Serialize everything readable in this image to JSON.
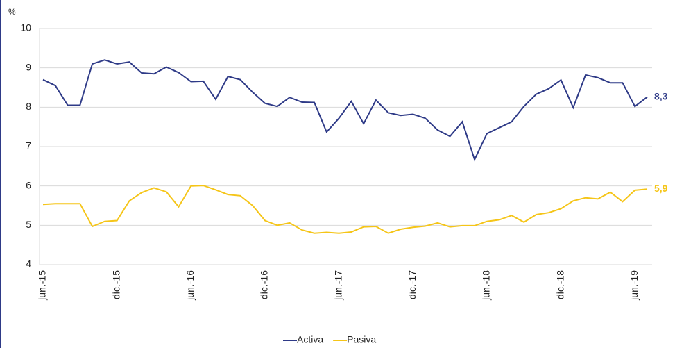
{
  "chart_data": {
    "type": "line",
    "y_label": "%",
    "categories": [
      "jun.-15",
      null,
      null,
      null,
      null,
      null,
      "dic.-15",
      null,
      null,
      null,
      null,
      null,
      "jun.-16",
      null,
      null,
      null,
      null,
      null,
      "dic.-16",
      null,
      null,
      null,
      null,
      null,
      "jun.-17",
      null,
      null,
      null,
      null,
      null,
      "dic.-17",
      null,
      null,
      null,
      null,
      null,
      "jun.-18",
      null,
      null,
      null,
      null,
      null,
      "dic.-18",
      null,
      null,
      null,
      null,
      null,
      "jun.-19",
      null
    ],
    "series": [
      {
        "name": "Activa",
        "color": "#2e3a87",
        "end_label": "8,3",
        "values": [
          8.7,
          8.55,
          8.05,
          8.05,
          9.1,
          9.2,
          9.1,
          9.15,
          8.87,
          8.85,
          9.02,
          8.88,
          8.65,
          8.66,
          8.2,
          8.78,
          8.7,
          8.38,
          8.1,
          8.02,
          8.25,
          8.13,
          8.12,
          7.37,
          7.72,
          8.15,
          7.58,
          8.18,
          7.86,
          7.79,
          7.82,
          7.72,
          7.42,
          7.26,
          7.63,
          6.67,
          7.33,
          7.48,
          7.63,
          8.02,
          8.33,
          8.47,
          8.69,
          7.99,
          8.82,
          8.75,
          8.62,
          8.62,
          8.02,
          8.26
        ]
      },
      {
        "name": "Pasiva",
        "color": "#f5c518",
        "end_label": "5,9",
        "values": [
          5.53,
          5.55,
          5.55,
          5.55,
          4.97,
          5.1,
          5.12,
          5.62,
          5.83,
          5.95,
          5.85,
          5.47,
          6.0,
          6.01,
          5.9,
          5.78,
          5.75,
          5.5,
          5.12,
          5.0,
          5.06,
          4.88,
          4.8,
          4.82,
          4.8,
          4.83,
          4.96,
          4.97,
          4.8,
          4.9,
          4.95,
          4.98,
          5.06,
          4.96,
          4.99,
          4.99,
          5.1,
          5.14,
          5.25,
          5.08,
          5.27,
          5.32,
          5.42,
          5.62,
          5.7,
          5.67,
          5.84,
          5.6,
          5.89,
          5.92
        ]
      }
    ],
    "ylim": [
      4,
      10
    ],
    "yticks": [
      4,
      5,
      6,
      7,
      8,
      9,
      10
    ],
    "grid": true,
    "legend": "bottom"
  }
}
